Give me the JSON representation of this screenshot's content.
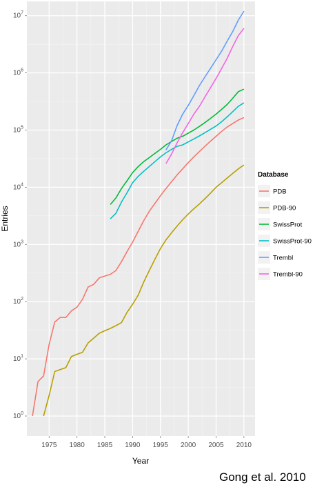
{
  "chart_data": {
    "type": "line",
    "xlabel": "Year",
    "ylabel": "Entries",
    "y_scale": "log10",
    "xlim": [
      1971,
      2012
    ],
    "ylim_log10": [
      -0.35,
      7.25
    ],
    "x_ticks": [
      1975,
      1980,
      1985,
      1990,
      1995,
      2000,
      2005,
      2010
    ],
    "y_ticks": [
      {
        "base": "10",
        "exp": "0",
        "value": 1
      },
      {
        "base": "10",
        "exp": "1",
        "value": 10
      },
      {
        "base": "10",
        "exp": "2",
        "value": 100
      },
      {
        "base": "10",
        "exp": "3",
        "value": 1000
      },
      {
        "base": "10",
        "exp": "4",
        "value": 10000
      },
      {
        "base": "10",
        "exp": "5",
        "value": 100000
      },
      {
        "base": "10",
        "exp": "6",
        "value": 1000000
      },
      {
        "base": "10",
        "exp": "7",
        "value": 10000000
      }
    ],
    "grid": true,
    "panel_background": "#ebebeb",
    "legend_title": "Database",
    "legend_position": "right",
    "series": [
      {
        "name": "PDB",
        "color": "#F8766D",
        "x": [
          1972,
          1973,
          1974,
          1975,
          1976,
          1977,
          1978,
          1979,
          1980,
          1981,
          1982,
          1983,
          1984,
          1985,
          1986,
          1987,
          1988,
          1989,
          1990,
          1991,
          1992,
          1993,
          1994,
          1995,
          1996,
          1997,
          1998,
          1999,
          2000,
          2001,
          2002,
          2003,
          2004,
          2005,
          2006,
          2007,
          2008,
          2009,
          2010
        ],
        "y": [
          1,
          4,
          5,
          18,
          44,
          53,
          53,
          69,
          80,
          110,
          180,
          200,
          260,
          280,
          300,
          350,
          500,
          750,
          1100,
          1700,
          2600,
          3800,
          5200,
          7100,
          9500,
          12500,
          16500,
          21000,
          27000,
          34000,
          42000,
          52000,
          64000,
          78000,
          95000,
          113000,
          130000,
          150000,
          165000
        ]
      },
      {
        "name": "PDB-90",
        "color": "#B79F00",
        "x": [
          1974,
          1975,
          1976,
          1977,
          1978,
          1979,
          1980,
          1981,
          1982,
          1983,
          1984,
          1985,
          1986,
          1987,
          1988,
          1989,
          1990,
          1991,
          1992,
          1993,
          1994,
          1995,
          1996,
          1997,
          1998,
          1999,
          2000,
          2001,
          2002,
          2003,
          2004,
          2005,
          2006,
          2007,
          2008,
          2009,
          2010
        ],
        "y": [
          1,
          2.3,
          6,
          6.5,
          7,
          11,
          12,
          13,
          19,
          23,
          28,
          31,
          34,
          38,
          43,
          65,
          90,
          130,
          220,
          350,
          550,
          850,
          1200,
          1600,
          2100,
          2700,
          3400,
          4200,
          5100,
          6300,
          7900,
          10000,
          12000,
          14500,
          17500,
          21000,
          24500
        ]
      },
      {
        "name": "SwissProt",
        "color": "#00BA38",
        "x": [
          1986,
          1987,
          1988,
          1989,
          1990,
          1991,
          1992,
          1993,
          1994,
          1995,
          1996,
          1997,
          1998,
          1999,
          2000,
          2001,
          2002,
          2003,
          2004,
          2005,
          2006,
          2007,
          2008,
          2009,
          2010
        ],
        "y": [
          5000,
          6500,
          9500,
          13000,
          18000,
          23000,
          28000,
          33000,
          39000,
          46000,
          55000,
          63000,
          72000,
          78000,
          88000,
          100000,
          116000,
          135000,
          160000,
          190000,
          230000,
          280000,
          360000,
          470000,
          520000
        ]
      },
      {
        "name": "SwissProt-90",
        "color": "#00BFC4",
        "x": [
          1986,
          1987,
          1988,
          1989,
          1990,
          1991,
          1992,
          1993,
          1994,
          1995,
          1996,
          1997,
          1998,
          1999,
          2000,
          2001,
          2002,
          2003,
          2004,
          2005,
          2006,
          2007,
          2008,
          2009,
          2010
        ],
        "y": [
          2800,
          3500,
          5500,
          8000,
          12000,
          15500,
          19000,
          23000,
          28000,
          34000,
          40000,
          46000,
          52000,
          55000,
          62000,
          70000,
          79000,
          90000,
          103000,
          118000,
          140000,
          170000,
          210000,
          260000,
          300000
        ]
      },
      {
        "name": "Trembl",
        "color": "#619CFF",
        "x": [
          1996,
          1997,
          1998,
          1999,
          2000,
          2001,
          2002,
          2003,
          2004,
          2005,
          2006,
          2007,
          2008,
          2009,
          2010
        ],
        "y": [
          45000,
          65000,
          120000,
          190000,
          270000,
          400000,
          600000,
          850000,
          1200000,
          1700000,
          2400000,
          3600000,
          5300000,
          8400000,
          12000000
        ]
      },
      {
        "name": "Trembl-90",
        "color": "#F564E3",
        "x": [
          1996,
          1997,
          1998,
          1999,
          2000,
          2001,
          2002,
          2003,
          2004,
          2005,
          2006,
          2007,
          2008,
          2009,
          2010
        ],
        "y": [
          26000,
          38000,
          60000,
          90000,
          130000,
          190000,
          260000,
          380000,
          550000,
          800000,
          1200000,
          1800000,
          2900000,
          4500000,
          6000000
        ]
      }
    ]
  },
  "caption": "Gong et al. 2010"
}
